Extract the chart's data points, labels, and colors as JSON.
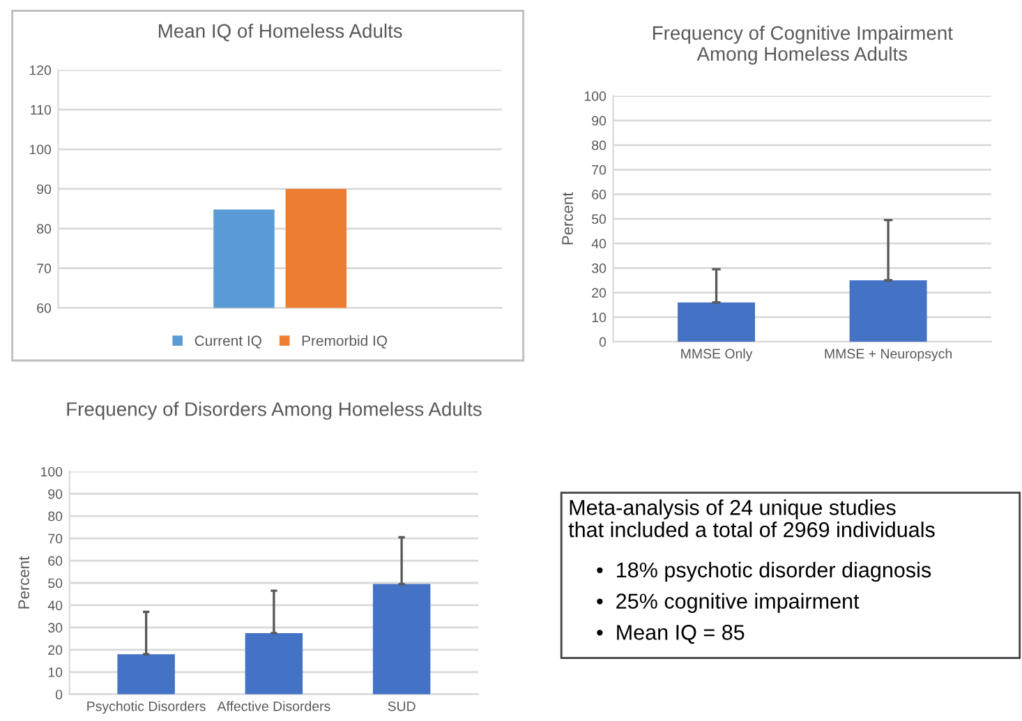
{
  "chart_data": [
    {
      "type": "bar",
      "title": "Mean IQ of Homeless Adults",
      "categories": [
        null
      ],
      "series": [
        {
          "name": "Current IQ",
          "color": "#5b9bd5",
          "values": [
            84.8
          ]
        },
        {
          "name": "Premorbid IQ",
          "color": "#ed7d31",
          "values": [
            90
          ]
        }
      ],
      "ylim": [
        60,
        120
      ],
      "yticks": [
        60,
        70,
        80,
        90,
        100,
        110,
        120
      ],
      "grid": "y",
      "legend": "bottom"
    },
    {
      "type": "bar",
      "title": "Frequency of Cognitive Impairment\nAmong Homeless Adults",
      "ylabel": "Percent",
      "categories": [
        "MMSE Only",
        "MMSE + Neuropsych"
      ],
      "series": [
        {
          "color": "#4472c4",
          "values": [
            16,
            25
          ],
          "errors": [
            [
              16,
              29.5
            ],
            [
              25,
              49.5
            ]
          ]
        }
      ],
      "ylim": [
        0,
        100
      ],
      "yticks": [
        0,
        10,
        20,
        30,
        40,
        50,
        60,
        70,
        80,
        90,
        100
      ],
      "grid": "y"
    },
    {
      "type": "bar",
      "title": "Frequency of Disorders Among Homeless Adults",
      "ylabel": "Percent",
      "categories": [
        "Psychotic Disorders",
        "Affective Disorders",
        "SUD"
      ],
      "series": [
        {
          "color": "#4472c4",
          "values": [
            18,
            27.5,
            49.5
          ],
          "errors": [
            [
              18,
              37
            ],
            [
              27.5,
              46.5
            ],
            [
              49.5,
              70.5
            ]
          ]
        }
      ],
      "ylim": [
        0,
        100
      ],
      "yticks": [
        0,
        10,
        20,
        30,
        40,
        50,
        60,
        70,
        80,
        90,
        100
      ],
      "grid": "y"
    },
    {
      "type": "other",
      "annotations": [
        "Meta-analysis of 24 unique studies\nthat included a total of 2969 individuals",
        "•  18% psychotic disorder diagnosis",
        "•  25% cognitive impairment",
        "•  Mean IQ = 85"
      ]
    }
  ]
}
